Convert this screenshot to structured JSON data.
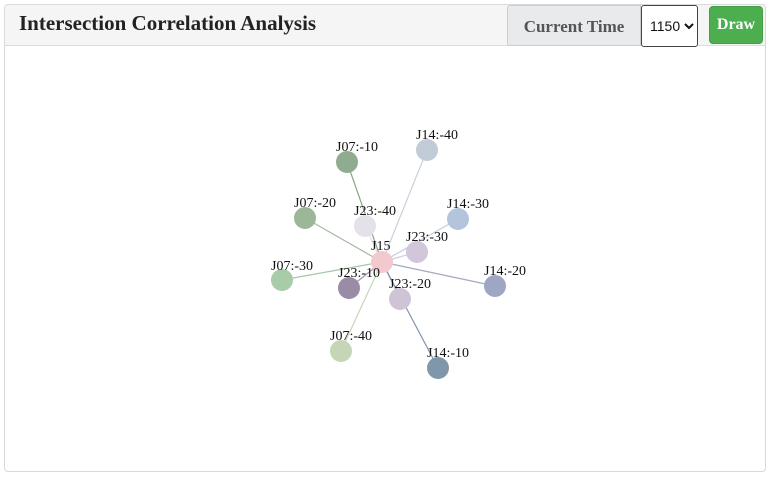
{
  "header": {
    "title": "Intersection Correlation Analysis",
    "time_label": "Current Time",
    "time_value": "1150",
    "draw_label": "Draw"
  },
  "graph": {
    "center": {
      "label": "J15",
      "color": "#f2c9cf"
    },
    "nodes": [
      {
        "id": "j07-10",
        "label": "J07:-10",
        "color": "#8fac8f",
        "edge": "#8aa58a"
      },
      {
        "id": "j14-40",
        "label": "J14:-40",
        "color": "#c2ccd8",
        "edge": "#c8d2dc"
      },
      {
        "id": "j07-20",
        "label": "J07:-20",
        "color": "#9cb797",
        "edge": "#a5b9a3"
      },
      {
        "id": "j23-40",
        "label": "J23:-40",
        "color": "#e4e2e8",
        "edge": "#e0dde3"
      },
      {
        "id": "j14-30",
        "label": "J14:-30",
        "color": "#b4c4da",
        "edge": "#c0cce0"
      },
      {
        "id": "j23-30",
        "label": "J23:-30",
        "color": "#d2c6da",
        "edge": "#d5cadc"
      },
      {
        "id": "j07-30",
        "label": "J07:-30",
        "color": "#a8cca8",
        "edge": "#a7c7a7"
      },
      {
        "id": "j23-10",
        "label": "J23:-10",
        "color": "#9a8ca6",
        "edge": "#a294ad"
      },
      {
        "id": "j14-20",
        "label": "J14:-20",
        "color": "#9ea6c4",
        "edge": "#a4aac2"
      },
      {
        "id": "j23-20",
        "label": "J23:-20",
        "color": "#cfc4d6",
        "edge": "#d1c7d8"
      },
      {
        "id": "j07-40",
        "label": "J07:-40",
        "color": "#c4d6b6",
        "edge": "#c5d6b8"
      },
      {
        "id": "j14-10",
        "label": "J14:-10",
        "color": "#7f96ab",
        "edge": "#7e93aa"
      }
    ]
  }
}
